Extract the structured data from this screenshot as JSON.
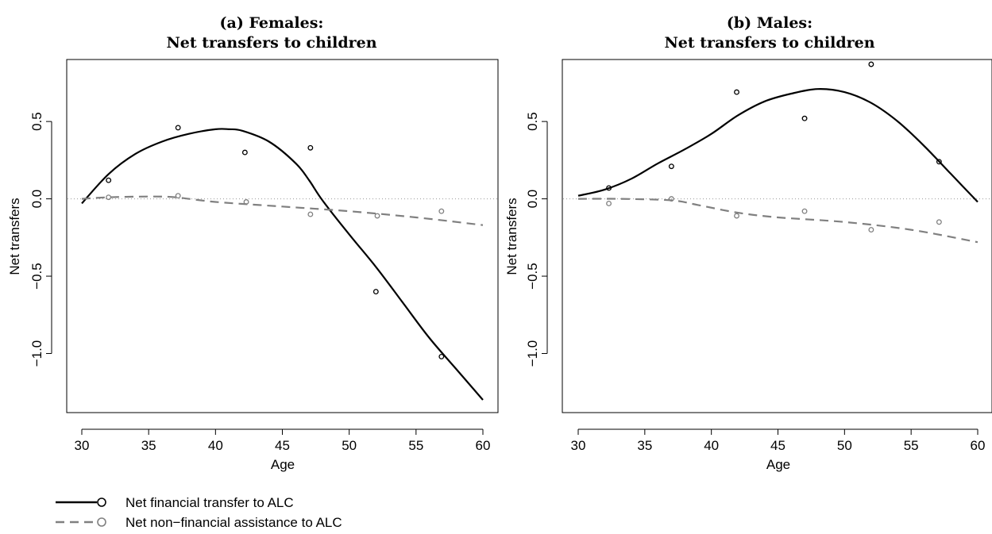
{
  "colors": {
    "fin": "#000000",
    "nonfin": "#808080",
    "zero_line": "#999999"
  },
  "legend": {
    "items": [
      {
        "key": "fin",
        "label": "Net financial transfer to ALC",
        "style": "solid"
      },
      {
        "key": "nonfin",
        "label": "Net non−financial assistance to ALC",
        "style": "dashed"
      }
    ]
  },
  "chart_data": [
    {
      "type": "line",
      "title": "(a) Females:",
      "subtitle": "Net transfers to children",
      "xlabel": "Age",
      "ylabel": "Net transfers",
      "xlim": [
        30,
        60
      ],
      "ylim": [
        -1.3,
        0.87
      ],
      "x_ticks": [
        30,
        35,
        40,
        45,
        50,
        55,
        60
      ],
      "y_ticks": [
        {
          "value": 0.5,
          "label": "0.5"
        },
        {
          "value": 0.0,
          "label": "0.0"
        },
        {
          "value": -0.5,
          "label": "−0.5"
        },
        {
          "value": -1.0,
          "label": "−1.0"
        }
      ],
      "zero_line": true,
      "series": [
        {
          "key": "fin",
          "kind": "smooth",
          "x": [
            30,
            32,
            34,
            36,
            38,
            40,
            41,
            42,
            44,
            46,
            47,
            48,
            50,
            52,
            54,
            56,
            58,
            60
          ],
          "y": [
            -0.03,
            0.16,
            0.29,
            0.37,
            0.42,
            0.45,
            0.45,
            0.44,
            0.37,
            0.23,
            0.12,
            -0.01,
            -0.23,
            -0.44,
            -0.67,
            -0.9,
            -1.1,
            -1.3
          ]
        },
        {
          "key": "nonfin",
          "kind": "smooth",
          "x": [
            30,
            32,
            35,
            37,
            40,
            45,
            50,
            55,
            60
          ],
          "y": [
            0.0,
            0.01,
            0.015,
            0.01,
            -0.02,
            -0.05,
            -0.08,
            -0.12,
            -0.17
          ]
        },
        {
          "key": "fin",
          "kind": "points",
          "x": [
            32,
            37.2,
            42.2,
            47.1,
            52,
            56.9
          ],
          "y": [
            0.12,
            0.46,
            0.3,
            0.33,
            -0.6,
            -1.02
          ]
        },
        {
          "key": "nonfin",
          "kind": "points",
          "x": [
            32,
            37.2,
            42.3,
            47.1,
            52.1,
            56.9
          ],
          "y": [
            0.01,
            0.02,
            -0.02,
            -0.1,
            -0.11,
            -0.08
          ]
        }
      ]
    },
    {
      "type": "line",
      "title": "(b) Males:",
      "subtitle": "Net transfers to children",
      "xlabel": "Age",
      "ylabel": "Net transfers",
      "xlim": [
        30,
        60
      ],
      "ylim": [
        -1.3,
        0.87
      ],
      "x_ticks": [
        30,
        35,
        40,
        45,
        50,
        55,
        60
      ],
      "y_ticks": [
        {
          "value": 0.5,
          "label": "0.5"
        },
        {
          "value": 0.0,
          "label": "0.0"
        },
        {
          "value": -0.5,
          "label": "−0.5"
        },
        {
          "value": -1.0,
          "label": "−1.0"
        }
      ],
      "zero_line": true,
      "series": [
        {
          "key": "fin",
          "kind": "smooth",
          "x": [
            30,
            32,
            34,
            36,
            38,
            40,
            42,
            44,
            46,
            48,
            50,
            52,
            54,
            56,
            58,
            60
          ],
          "y": [
            0.02,
            0.06,
            0.13,
            0.23,
            0.32,
            0.42,
            0.54,
            0.63,
            0.68,
            0.71,
            0.69,
            0.62,
            0.5,
            0.34,
            0.16,
            -0.02
          ]
        },
        {
          "key": "nonfin",
          "kind": "smooth",
          "x": [
            30,
            33,
            37,
            39,
            42,
            45,
            50,
            55,
            60
          ],
          "y": [
            0.0,
            0.0,
            -0.01,
            -0.04,
            -0.09,
            -0.12,
            -0.15,
            -0.2,
            -0.28
          ]
        },
        {
          "key": "fin",
          "kind": "points",
          "x": [
            32.3,
            37,
            41.9,
            47,
            52,
            57.1
          ],
          "y": [
            0.07,
            0.21,
            0.69,
            0.52,
            0.87,
            0.24
          ]
        },
        {
          "key": "nonfin",
          "kind": "points",
          "x": [
            32.3,
            37,
            41.9,
            47,
            52,
            57.1
          ],
          "y": [
            -0.03,
            0.0,
            -0.11,
            -0.08,
            -0.2,
            -0.15
          ]
        }
      ]
    }
  ]
}
